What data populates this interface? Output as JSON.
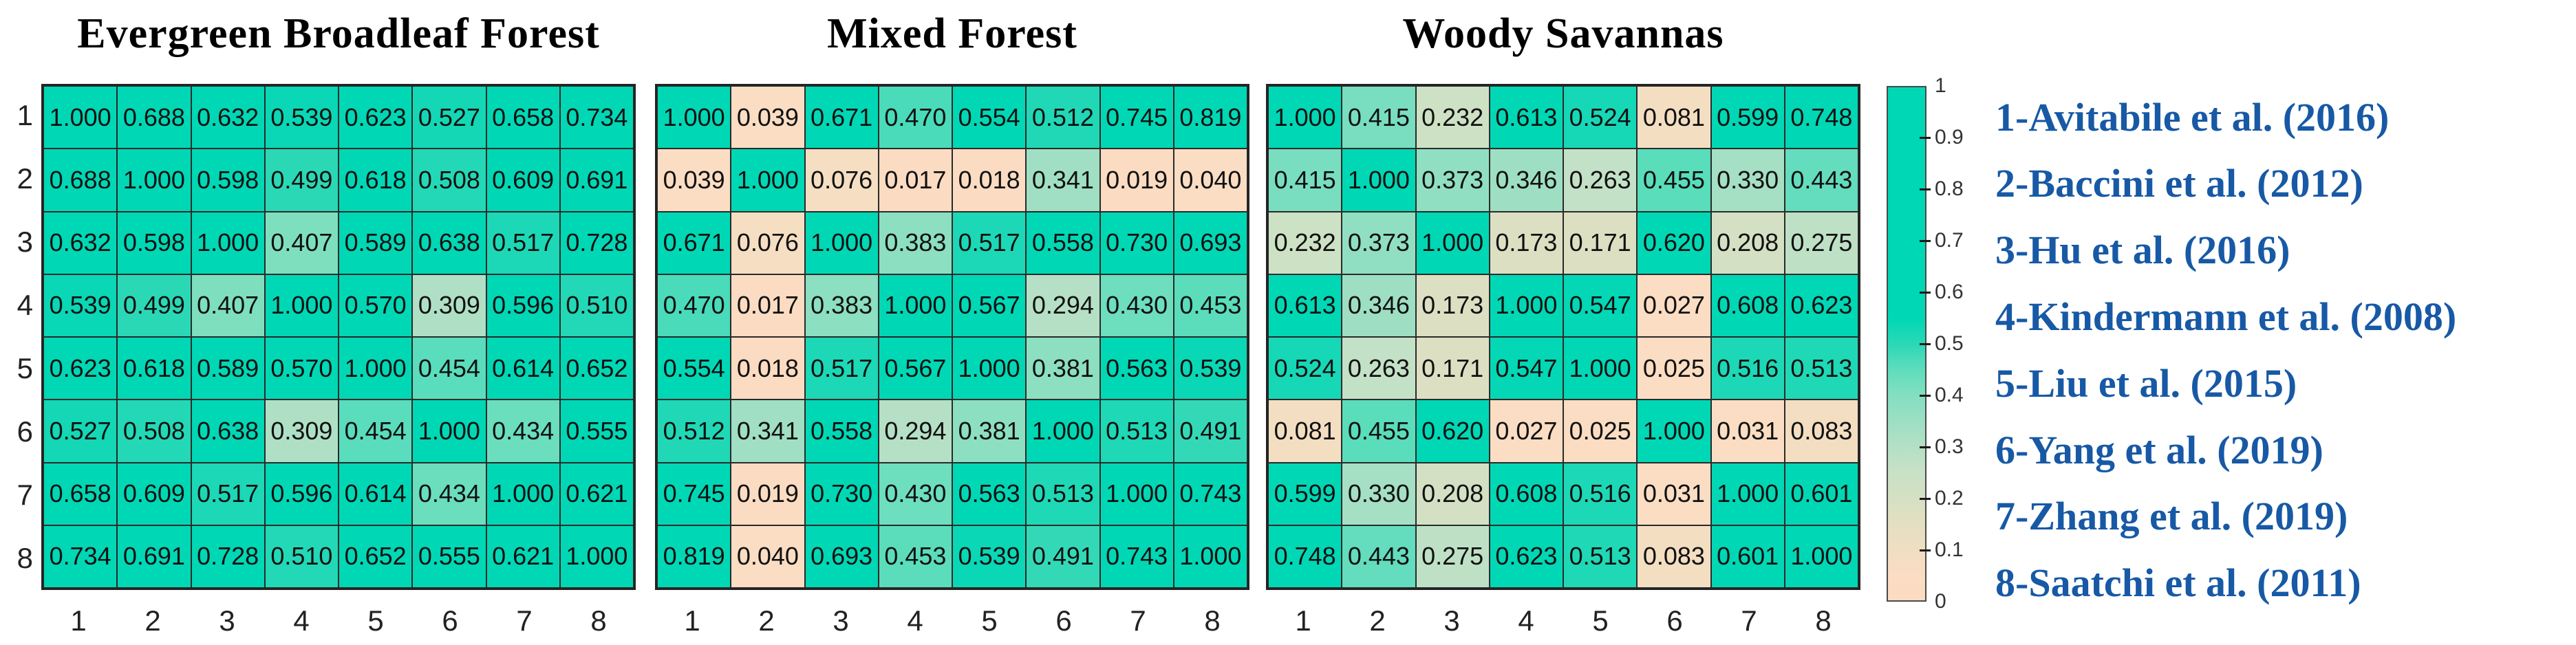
{
  "figure": {
    "background": "#FFFFFF",
    "title_color": "#000000",
    "grid_line_color": "#2A2A2A",
    "cell_text_color": "#111111",
    "axis_text_color": "#222222",
    "legend": {
      "color": "#1759A5",
      "items": [
        "1-Avitabile et al. (2016)",
        "2-Baccini et al. (2012)",
        "3-Hu et al. (2016)",
        "4-Kindermann et al. (2008)",
        "5-Liu et al. (2015)",
        "6-Yang et al. (2019)",
        "7-Zhang et al. (2019)",
        "8-Saatchi et al. (2011)"
      ]
    },
    "colorbar": {
      "min": 0,
      "max": 1,
      "tick_labels": [
        "1",
        "0.9",
        "0.8",
        "0.7",
        "0.6",
        "0.5",
        "0.4",
        "0.3",
        "0.2",
        "0.1",
        "0"
      ],
      "teal_color": "#00D7B5",
      "peach_color": "#FBDCC2",
      "gradient_stops": [
        {
          "v": 0.0,
          "color": "#FBDCC2"
        },
        {
          "v": 0.05,
          "color": "#FADDC3"
        },
        {
          "v": 0.1,
          "color": "#F0DEC2"
        },
        {
          "v": 0.15,
          "color": "#E3DFC2"
        },
        {
          "v": 0.2,
          "color": "#D5E0C4"
        },
        {
          "v": 0.25,
          "color": "#C8E1C6"
        },
        {
          "v": 0.3,
          "color": "#B3E0C5"
        },
        {
          "v": 0.35,
          "color": "#9CDFC3"
        },
        {
          "v": 0.4,
          "color": "#83DFC0"
        },
        {
          "v": 0.45,
          "color": "#5EDDBC"
        },
        {
          "v": 0.5,
          "color": "#2AD8B6"
        },
        {
          "v": 0.55,
          "color": "#00D7B5"
        },
        {
          "v": 1.0,
          "color": "#00D7B5"
        }
      ]
    }
  },
  "chart_data": [
    {
      "type": "heatmap",
      "title": "Evergreen Broadleaf Forest",
      "x_ticks": [
        "1",
        "2",
        "3",
        "4",
        "5",
        "6",
        "7",
        "8"
      ],
      "y_ticks": [
        "1",
        "2",
        "3",
        "4",
        "5",
        "6",
        "7",
        "8"
      ],
      "value_range": [
        0,
        1
      ],
      "values": [
        [
          1.0,
          0.688,
          0.632,
          0.539,
          0.623,
          0.527,
          0.658,
          0.734
        ],
        [
          0.688,
          1.0,
          0.598,
          0.499,
          0.618,
          0.508,
          0.609,
          0.691
        ],
        [
          0.632,
          0.598,
          1.0,
          0.407,
          0.589,
          0.638,
          0.517,
          0.728
        ],
        [
          0.539,
          0.499,
          0.407,
          1.0,
          0.57,
          0.309,
          0.596,
          0.51
        ],
        [
          0.623,
          0.618,
          0.589,
          0.57,
          1.0,
          0.454,
          0.614,
          0.652
        ],
        [
          0.527,
          0.508,
          0.638,
          0.309,
          0.454,
          1.0,
          0.434,
          0.555
        ],
        [
          0.658,
          0.609,
          0.517,
          0.596,
          0.614,
          0.434,
          1.0,
          0.621
        ],
        [
          0.734,
          0.691,
          0.728,
          0.51,
          0.652,
          0.555,
          0.621,
          1.0
        ]
      ]
    },
    {
      "type": "heatmap",
      "title": "Mixed Forest",
      "x_ticks": [
        "1",
        "2",
        "3",
        "4",
        "5",
        "6",
        "7",
        "8"
      ],
      "y_ticks": [
        "1",
        "2",
        "3",
        "4",
        "5",
        "6",
        "7",
        "8"
      ],
      "value_range": [
        0,
        1
      ],
      "values": [
        [
          1.0,
          0.039,
          0.671,
          0.47,
          0.554,
          0.512,
          0.745,
          0.819
        ],
        [
          0.039,
          1.0,
          0.076,
          0.017,
          0.018,
          0.341,
          0.019,
          0.04
        ],
        [
          0.671,
          0.076,
          1.0,
          0.383,
          0.517,
          0.558,
          0.73,
          0.693
        ],
        [
          0.47,
          0.017,
          0.383,
          1.0,
          0.567,
          0.294,
          0.43,
          0.453
        ],
        [
          0.554,
          0.018,
          0.517,
          0.567,
          1.0,
          0.381,
          0.563,
          0.539
        ],
        [
          0.512,
          0.341,
          0.558,
          0.294,
          0.381,
          1.0,
          0.513,
          0.491
        ],
        [
          0.745,
          0.019,
          0.73,
          0.43,
          0.563,
          0.513,
          1.0,
          0.743
        ],
        [
          0.819,
          0.04,
          0.693,
          0.453,
          0.539,
          0.491,
          0.743,
          1.0
        ]
      ]
    },
    {
      "type": "heatmap",
      "title": "Woody Savannas",
      "x_ticks": [
        "1",
        "2",
        "3",
        "4",
        "5",
        "6",
        "7",
        "8"
      ],
      "y_ticks": [
        "1",
        "2",
        "3",
        "4",
        "5",
        "6",
        "7",
        "8"
      ],
      "value_range": [
        0,
        1
      ],
      "values": [
        [
          1.0,
          0.415,
          0.232,
          0.613,
          0.524,
          0.081,
          0.599,
          0.748
        ],
        [
          0.415,
          1.0,
          0.373,
          0.346,
          0.263,
          0.455,
          0.33,
          0.443
        ],
        [
          0.232,
          0.373,
          1.0,
          0.173,
          0.171,
          0.62,
          0.208,
          0.275
        ],
        [
          0.613,
          0.346,
          0.173,
          1.0,
          0.547,
          0.027,
          0.608,
          0.623
        ],
        [
          0.524,
          0.263,
          0.171,
          0.547,
          1.0,
          0.025,
          0.516,
          0.513
        ],
        [
          0.081,
          0.455,
          0.62,
          0.027,
          0.025,
          1.0,
          0.031,
          0.083
        ],
        [
          0.599,
          0.33,
          0.208,
          0.608,
          0.516,
          0.031,
          1.0,
          0.601
        ],
        [
          0.748,
          0.443,
          0.275,
          0.623,
          0.513,
          0.083,
          0.601,
          1.0
        ]
      ]
    }
  ]
}
